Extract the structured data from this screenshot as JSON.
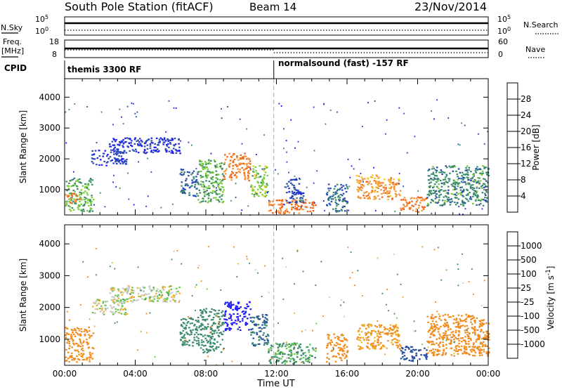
{
  "header": {
    "station": "South Pole Station (fitACF)",
    "beam": "Beam 14",
    "date": "23/Nov/2014"
  },
  "nsky_panel": {
    "left_label": "N.Sky",
    "right_label": "N.Search",
    "left_ticks": [
      "10^5",
      "10^0"
    ],
    "right_ticks": [
      "10^5",
      "10^0"
    ]
  },
  "freq_panel": {
    "left_label_line1": "Freq.",
    "left_label_line2": "[MHz]",
    "right_label": "Nave",
    "left_ticks": [
      "18",
      "8"
    ],
    "right_ticks": [
      "60",
      "0"
    ]
  },
  "cpid_panel": {
    "label": "CPID",
    "modes": [
      {
        "text": "themis 3300 RF",
        "start_hour": 0
      },
      {
        "text": "normalsound (fast) -157 RF",
        "start_hour": 11.85
      }
    ]
  },
  "colors": {
    "power_scale": [
      "#1e1ef5",
      "#2a4ab4",
      "#3c8c6c",
      "#7acb3c",
      "#f5c81e",
      "#f5963c",
      "#f06414",
      "#e61e1e"
    ],
    "velocity_scale": [
      "#1e1ef5",
      "#2850a0",
      "#3c8c6c",
      "#64c850",
      "#c8c8c8",
      "#f0b428",
      "#f08c1e",
      "#f06414",
      "#e61e1e"
    ]
  },
  "chart_data": [
    {
      "type": "heatmap",
      "name": "power",
      "xlabel": "",
      "ylabel": "Slant Range [km]",
      "xlim": [
        0,
        24
      ],
      "ylim": [
        180,
        4600
      ],
      "yticks": [
        "1000",
        "2000",
        "3000",
        "4000"
      ],
      "colorbar_label": "Power [dB]",
      "colorbar_ticks": [
        "4",
        "8",
        "12",
        "16",
        "20",
        "24",
        "28"
      ],
      "regions": [
        {
          "t0": 0.0,
          "t1": 1.6,
          "r0": 300,
          "r1": 1400,
          "v": 14
        },
        {
          "t0": 0.0,
          "t1": 0.8,
          "r0": 600,
          "r1": 900,
          "v": 26
        },
        {
          "t0": 1.5,
          "t1": 3.5,
          "r0": 1800,
          "r1": 2300,
          "v": 7
        },
        {
          "t0": 2.5,
          "t1": 6.5,
          "r0": 2200,
          "r1": 2700,
          "v": 6
        },
        {
          "t0": 6.5,
          "t1": 7.5,
          "r0": 800,
          "r1": 1700,
          "v": 9
        },
        {
          "t0": 7.5,
          "t1": 9.0,
          "r0": 600,
          "r1": 2000,
          "v": 14
        },
        {
          "t0": 9.0,
          "t1": 10.5,
          "r0": 1300,
          "r1": 2200,
          "v": 26
        },
        {
          "t0": 10.5,
          "t1": 11.5,
          "r0": 800,
          "r1": 1800,
          "v": 16
        },
        {
          "t0": 11.5,
          "t1": 14.2,
          "r0": 250,
          "r1": 700,
          "v": 27
        },
        {
          "t0": 12.5,
          "t1": 13.5,
          "r0": 600,
          "r1": 1400,
          "v": 8
        },
        {
          "t0": 14.8,
          "t1": 16.0,
          "r0": 300,
          "r1": 1200,
          "v": 10
        },
        {
          "t0": 16.5,
          "t1": 19.0,
          "r0": 700,
          "r1": 1500,
          "v": 24
        },
        {
          "t0": 19.0,
          "t1": 20.5,
          "r0": 300,
          "r1": 800,
          "v": 26
        },
        {
          "t0": 20.5,
          "t1": 24.0,
          "r0": 500,
          "r1": 1800,
          "v": 12
        }
      ]
    },
    {
      "type": "heatmap",
      "name": "velocity",
      "xlabel": "Time UT",
      "ylabel": "Slant Range [km]",
      "xlim": [
        0,
        24
      ],
      "ylim": [
        180,
        4600
      ],
      "xticks": [
        "00:00",
        "04:00",
        "08:00",
        "12:00",
        "16:00",
        "20:00",
        "00:00"
      ],
      "yticks": [
        "1000",
        "2000",
        "3000",
        "4000"
      ],
      "colorbar_label": "Velocity [m s^-1]",
      "colorbar_ticks": [
        "1000",
        "500",
        "100",
        "25",
        "-25",
        "-100",
        "-500",
        "-1000"
      ],
      "regions": [
        {
          "t0": 0.0,
          "t1": 1.6,
          "r0": 300,
          "r1": 1400,
          "v": -120
        },
        {
          "t0": 1.5,
          "t1": 3.5,
          "r0": 1800,
          "r1": 2300,
          "v": 0
        },
        {
          "t0": 2.5,
          "t1": 6.5,
          "r0": 2200,
          "r1": 2700,
          "v": 5
        },
        {
          "t0": 6.5,
          "t1": 7.5,
          "r0": 800,
          "r1": 1700,
          "v": 150
        },
        {
          "t0": 7.5,
          "t1": 9.0,
          "r0": 600,
          "r1": 2000,
          "v": 200
        },
        {
          "t0": 9.0,
          "t1": 10.5,
          "r0": 1300,
          "r1": 2200,
          "v": 900
        },
        {
          "t0": 10.5,
          "t1": 11.5,
          "r0": 800,
          "r1": 1800,
          "v": 300
        },
        {
          "t0": 11.5,
          "t1": 14.2,
          "r0": 250,
          "r1": 900,
          "v": 80
        },
        {
          "t0": 14.8,
          "t1": 16.0,
          "r0": 300,
          "r1": 1200,
          "v": -150
        },
        {
          "t0": 16.5,
          "t1": 19.0,
          "r0": 700,
          "r1": 1500,
          "v": -90
        },
        {
          "t0": 19.0,
          "t1": 20.5,
          "r0": 300,
          "r1": 800,
          "v": 400
        },
        {
          "t0": 20.5,
          "t1": 24.0,
          "r0": 500,
          "r1": 1800,
          "v": -200
        }
      ]
    }
  ]
}
